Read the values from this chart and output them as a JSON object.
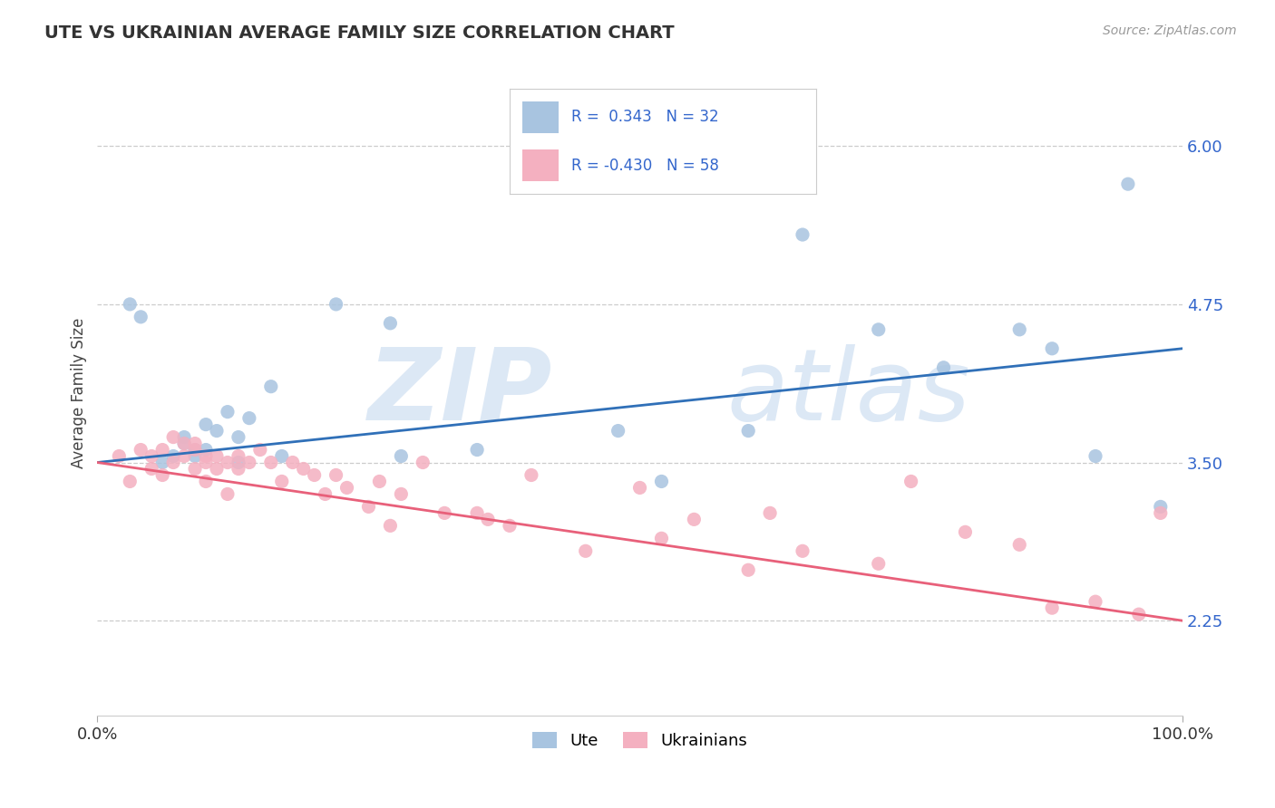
{
  "title": "UTE VS UKRAINIAN AVERAGE FAMILY SIZE CORRELATION CHART",
  "source": "Source: ZipAtlas.com",
  "ylabel": "Average Family Size",
  "xlim": [
    0,
    100
  ],
  "ylim": [
    1.5,
    6.6
  ],
  "yticks": [
    2.25,
    3.5,
    4.75,
    6.0
  ],
  "ytick_labels": [
    "2.25",
    "3.50",
    "4.75",
    "6.00"
  ],
  "xticks": [
    0,
    100
  ],
  "xticklabels": [
    "0.0%",
    "100.0%"
  ],
  "watermark_zip": "ZIP",
  "watermark_atlas": "atlas",
  "ute_color": "#a8c4e0",
  "ukr_color": "#f4b0c0",
  "ute_line_color": "#3070b8",
  "ukr_line_color": "#e8607a",
  "ute_R": 0.343,
  "ute_N": 32,
  "ukr_R": -0.43,
  "ukr_N": 58,
  "ute_scatter_x": [
    3,
    4,
    7,
    8,
    9,
    9,
    10,
    10,
    11,
    12,
    13,
    14,
    16,
    17,
    22,
    27,
    28,
    35,
    48,
    52,
    60,
    65,
    72,
    78,
    85,
    88,
    92,
    95,
    98,
    6,
    8,
    13
  ],
  "ute_scatter_y": [
    4.75,
    4.65,
    3.55,
    3.65,
    3.55,
    3.6,
    3.6,
    3.8,
    3.75,
    3.9,
    3.7,
    3.85,
    4.1,
    3.55,
    4.75,
    4.6,
    3.55,
    3.6,
    3.75,
    3.35,
    3.75,
    5.3,
    4.55,
    4.25,
    4.55,
    4.4,
    3.55,
    5.7,
    3.15,
    3.5,
    3.7,
    3.5
  ],
  "ukr_scatter_x": [
    2,
    3,
    4,
    5,
    5,
    6,
    6,
    7,
    7,
    8,
    8,
    9,
    9,
    9,
    10,
    10,
    10,
    11,
    11,
    12,
    12,
    13,
    13,
    14,
    15,
    16,
    17,
    18,
    19,
    20,
    21,
    22,
    23,
    25,
    26,
    27,
    28,
    30,
    32,
    35,
    36,
    38,
    40,
    45,
    50,
    52,
    55,
    60,
    62,
    65,
    72,
    75,
    80,
    85,
    88,
    92,
    96,
    98
  ],
  "ukr_scatter_y": [
    3.55,
    3.35,
    3.6,
    3.45,
    3.55,
    3.6,
    3.4,
    3.5,
    3.7,
    3.55,
    3.65,
    3.45,
    3.6,
    3.65,
    3.35,
    3.55,
    3.5,
    3.45,
    3.55,
    3.5,
    3.25,
    3.45,
    3.55,
    3.5,
    3.6,
    3.5,
    3.35,
    3.5,
    3.45,
    3.4,
    3.25,
    3.4,
    3.3,
    3.15,
    3.35,
    3.0,
    3.25,
    3.5,
    3.1,
    3.1,
    3.05,
    3.0,
    3.4,
    2.8,
    3.3,
    2.9,
    3.05,
    2.65,
    3.1,
    2.8,
    2.7,
    3.35,
    2.95,
    2.85,
    2.35,
    2.4,
    2.3,
    3.1
  ]
}
